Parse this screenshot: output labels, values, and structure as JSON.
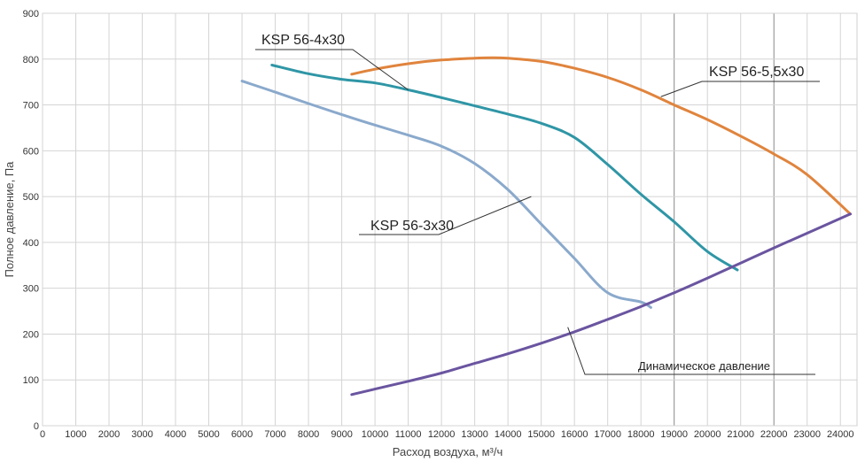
{
  "chart_data": {
    "type": "line",
    "xlabel": "Расход воздуха, м³/ч",
    "ylabel": "Полное давление, Па",
    "xlim": [
      0,
      24500
    ],
    "ylim": [
      0,
      900
    ],
    "x_ticks": [
      0,
      1000,
      2000,
      3000,
      4000,
      5000,
      6000,
      7000,
      8000,
      9000,
      10000,
      11000,
      12000,
      13000,
      14000,
      15000,
      16000,
      17000,
      18000,
      19000,
      20000,
      21000,
      22000,
      23000,
      24000
    ],
    "y_ticks": [
      0,
      100,
      200,
      300,
      400,
      500,
      600,
      700,
      800,
      900
    ],
    "grid": true,
    "series": [
      {
        "name": "KSP 56-3x30",
        "color": "#8aa9cc",
        "x": [
          6000,
          7000,
          8000,
          9000,
          10000,
          11000,
          12000,
          13000,
          14000,
          15000,
          16000,
          17000,
          18000,
          18300
        ],
        "y": [
          752,
          728,
          703,
          679,
          656,
          634,
          610,
          572,
          515,
          440,
          365,
          290,
          270,
          258
        ]
      },
      {
        "name": "KSP 56-4x30",
        "color": "#2f96a6",
        "x": [
          6900,
          8000,
          9000,
          10000,
          11000,
          12000,
          13000,
          14000,
          15000,
          16000,
          17000,
          18000,
          19000,
          20000,
          20900
        ],
        "y": [
          787,
          768,
          756,
          748,
          733,
          716,
          698,
          680,
          660,
          629,
          570,
          505,
          445,
          380,
          340
        ]
      },
      {
        "name": "KSP 56-5,5x30",
        "color": "#e0843d",
        "x": [
          9300,
          10000,
          11000,
          12000,
          13000,
          13500,
          14000,
          15000,
          16000,
          17000,
          18000,
          19000,
          20000,
          21000,
          22000,
          23000,
          24300
        ],
        "y": [
          767,
          778,
          790,
          798,
          802,
          803,
          802,
          795,
          780,
          760,
          733,
          700,
          668,
          632,
          593,
          548,
          462
        ]
      },
      {
        "name": "Динамическое давление",
        "color": "#6a55a0",
        "x": [
          9300,
          10000,
          11000,
          12000,
          13000,
          14000,
          15000,
          16000,
          17000,
          18000,
          19000,
          20000,
          21000,
          22000,
          23000,
          24300
        ],
        "y": [
          68,
          80,
          97,
          115,
          136,
          157,
          180,
          205,
          232,
          260,
          290,
          322,
          355,
          388,
          420,
          462
        ]
      }
    ]
  }
}
